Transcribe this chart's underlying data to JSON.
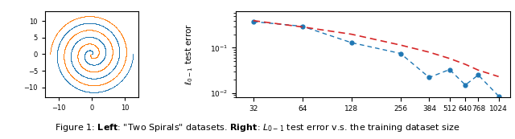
{
  "spiral_n": 2000,
  "spiral_turns": 3.0,
  "line_data_x": [
    32,
    64,
    128,
    256,
    384,
    512,
    640,
    768,
    1024
  ],
  "line_data_blue": [
    0.38,
    0.3,
    0.13,
    0.075,
    0.022,
    0.033,
    0.015,
    0.025,
    0.0085
  ],
  "line_data_red": [
    0.4,
    0.29,
    0.2,
    0.115,
    0.08,
    0.058,
    0.043,
    0.032,
    0.023
  ],
  "blue_color": "#1f77b4",
  "orange_color": "#ff7f0e",
  "red_color": "#d62728",
  "ylabel_right": "$\\ell_{0-1}$ test error",
  "xtick_labels": [
    "32",
    "64",
    "128",
    "256",
    "384",
    "512",
    "640",
    "768",
    "1024"
  ],
  "fig_width": 6.4,
  "fig_height": 1.73,
  "dpi": 100
}
